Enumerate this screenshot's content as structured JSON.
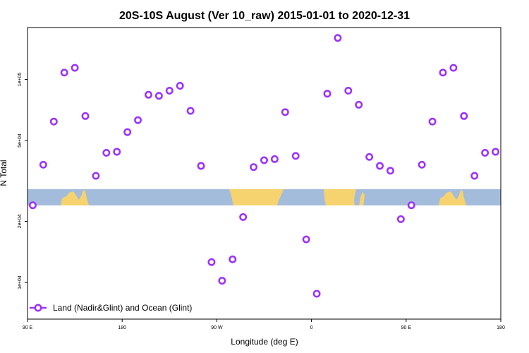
{
  "chart_data": {
    "type": "scatter",
    "title": "20S-10S August (Ver 10_raw)   2015-01-01 to 2020-12-31",
    "xlabel": "Longitude (deg E)",
    "ylabel": "N Total",
    "y_scale": "log",
    "xlim": [
      90,
      540
    ],
    "ylim": [
      6600,
      180000
    ],
    "x_ticks": [
      {
        "value": 90,
        "label": "90 E"
      },
      {
        "value": 180,
        "label": "180"
      },
      {
        "value": 270,
        "label": "90 W"
      },
      {
        "value": 360,
        "label": "0"
      },
      {
        "value": 450,
        "label": "90 E"
      },
      {
        "value": 540,
        "label": "180"
      }
    ],
    "y_ticks": [
      {
        "value": 10000,
        "label": "1e+04"
      },
      {
        "value": 20000,
        "label": "2e+04"
      },
      {
        "value": 50000,
        "label": "5e+04"
      },
      {
        "value": 100000,
        "label": "1e+05"
      }
    ],
    "grid": false,
    "legend_position": "bottom-left",
    "colors": {
      "series": "#9b30ff",
      "ocean": "#a4bcdc",
      "land": "#f6d36e"
    },
    "series": [
      {
        "name": "Land (Nadir&Glint) and Ocean (Glint)",
        "color": "#9b30ff",
        "marker": "open-circle",
        "x": [
          95,
          105,
          115,
          125,
          135,
          145,
          155,
          165,
          175,
          185,
          195,
          205,
          215,
          225,
          235,
          245,
          255,
          265,
          275,
          285,
          295,
          305,
          315,
          325,
          335,
          345,
          355,
          365,
          375,
          385,
          395,
          405,
          415,
          425,
          435,
          445,
          455,
          465,
          475,
          485,
          495,
          505,
          515,
          525,
          535
        ],
        "y": [
          24000,
          38000,
          62000,
          108000,
          114000,
          66000,
          33500,
          43500,
          44000,
          55000,
          63000,
          84000,
          83000,
          88000,
          93000,
          70000,
          37500,
          12600,
          10200,
          13000,
          21000,
          37000,
          40000,
          40500,
          69000,
          42000,
          16300,
          8800,
          85000,
          160000,
          88000,
          75000,
          41500,
          37500,
          35500,
          20500,
          24000,
          38000,
          62000,
          108000,
          114000,
          66000,
          33500,
          43500,
          44000
        ]
      }
    ],
    "surface_strip": {
      "legend": "none",
      "segments": [
        "ocean",
        "land",
        "ocean",
        "land",
        "ocean",
        "land",
        "ocean",
        "land",
        "ocean"
      ]
    }
  }
}
